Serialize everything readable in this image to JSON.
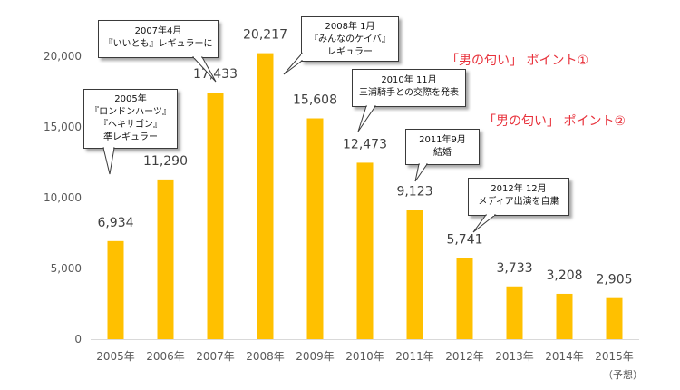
{
  "colors": {
    "bar": "#FFC000",
    "axis": "#D9D9D9",
    "grid": "#E7E7E7",
    "note": "#E8323C"
  },
  "chart_data": {
    "type": "bar",
    "categories": [
      "2005年",
      "2006年",
      "2007年",
      "2008年",
      "2009年",
      "2010年",
      "2011年",
      "2012年",
      "2013年",
      "2014年",
      "2015年"
    ],
    "values": [
      6934,
      11290,
      17433,
      20217,
      15608,
      12473,
      9123,
      5741,
      3733,
      3208,
      2905
    ],
    "value_labels": [
      "6,934",
      "11,290",
      "17,433",
      "20,217",
      "15,608",
      "12,473",
      "9,123",
      "5,741",
      "3,733",
      "3,208",
      "2,905"
    ],
    "yticks": [
      0,
      5000,
      10000,
      15000,
      20000
    ],
    "ytick_labels": [
      "0",
      "5,000",
      "10,000",
      "15,000",
      "20,000"
    ],
    "ylim": [
      0,
      22000
    ],
    "title": "",
    "xlabel": "",
    "ylabel": "",
    "x_note": "（予想）"
  },
  "callouts": [
    {
      "lines": [
        "2005年",
        "『ロンドンハーツ』",
        "『ヘキサゴン』",
        "準レギュラー"
      ]
    },
    {
      "lines": [
        "2007年4月",
        "『いいとも』レギュラーに"
      ]
    },
    {
      "lines": [
        "2008年 1月",
        "『みんなのケイバ』",
        "レギュラー"
      ]
    },
    {
      "lines": [
        "2010年 11月",
        "三浦騎手との交際を発表"
      ]
    },
    {
      "lines": [
        "2011年9月",
        "結婚"
      ]
    },
    {
      "lines": [
        "2012年 12月",
        "メディア出演を自粛"
      ]
    }
  ],
  "annotations": [
    {
      "text": "「男の匂い」 ポイント①"
    },
    {
      "text": "「男の匂い」 ポイント②"
    }
  ]
}
